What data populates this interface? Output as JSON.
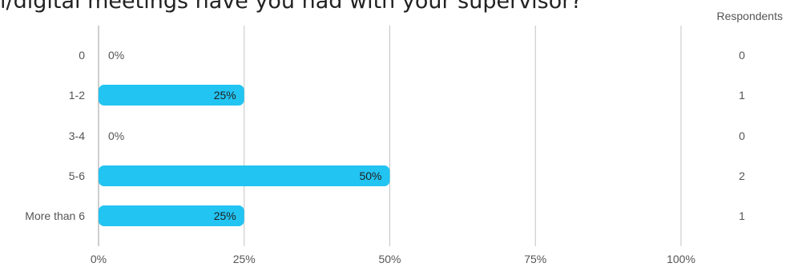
{
  "chart_data": {
    "type": "bar",
    "orientation": "horizontal",
    "title": "l/digital meetings have you had with your supervisor?",
    "categories": [
      "0",
      "1-2",
      "3-4",
      "5-6",
      "More than 6"
    ],
    "values": [
      0,
      25,
      0,
      50,
      25
    ],
    "value_labels": [
      "0%",
      "25%",
      "0%",
      "50%",
      "25%"
    ],
    "respondents_header": "Respondents",
    "respondents": [
      "0",
      "1",
      "0",
      "2",
      "1"
    ],
    "x_ticks": [
      0,
      25,
      50,
      75,
      100
    ],
    "x_tick_labels": [
      "0%",
      "25%",
      "50%",
      "75%",
      "100%"
    ],
    "xlim": [
      0,
      100
    ],
    "grid": true,
    "bar_color": "#22c4f2"
  }
}
